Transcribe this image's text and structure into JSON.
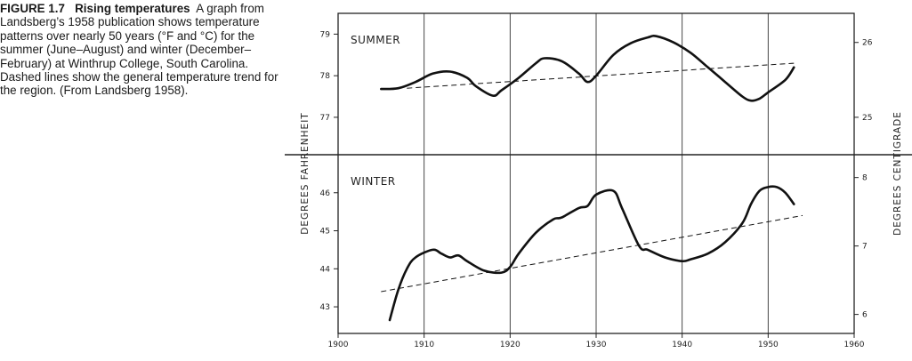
{
  "caption": {
    "figure_number": "FIGURE 1.7",
    "title": "Rising temperatures",
    "body": "A graph from Landsberg’s 1958 publication shows temperature patterns over nearly 50 years (°F and °C) for the summer (June–August) and winter (December–February) at Winthrup College, South Carolina. Dashed lines show the general temperature trend for the region. (From Landsberg 1958)."
  },
  "chart_data": {
    "type": "line",
    "xlim": [
      1900,
      1960
    ],
    "x_ticks": [
      1900,
      1910,
      1920,
      1930,
      1940,
      1950,
      1960
    ],
    "x_tick_labels": [
      "1900",
      "1910",
      "1920",
      "1930",
      "1940",
      "1950",
      "1960"
    ],
    "ylabel_left": "DEGREES FAHRENHEIT",
    "ylabel_right": "DEGREES CENTIGRADE",
    "grid": "vertical lines at each decade",
    "panels": [
      {
        "label": "SUMMER",
        "ylim_f": [
          76.1,
          79.5
        ],
        "y_ticks_f": [
          77,
          78,
          79
        ],
        "y_tick_labels_f": [
          "77",
          "78",
          "79"
        ],
        "y_ticks_c": [
          25,
          26
        ],
        "y_tick_labels_c": [
          "25",
          "26"
        ],
        "series": [
          {
            "style": "solid",
            "x": [
              1905,
              1907,
              1909,
              1911,
              1913,
              1915,
              1916,
              1918,
              1919,
              1921,
              1923,
              1924,
              1926,
              1928,
              1929,
              1930,
              1932,
              1934,
              1936,
              1937,
              1939,
              1941,
              1943,
              1945,
              1947,
              1948,
              1949,
              1950,
              1952,
              1953
            ],
            "y": [
              77.68,
              77.7,
              77.85,
              78.05,
              78.1,
              77.95,
              77.75,
              77.52,
              77.65,
              77.95,
              78.3,
              78.42,
              78.35,
              78.05,
              77.85,
              78.0,
              78.5,
              78.78,
              78.92,
              78.95,
              78.8,
              78.55,
              78.2,
              77.85,
              77.5,
              77.4,
              77.45,
              77.6,
              77.9,
              78.2
            ]
          },
          {
            "style": "dashed",
            "x": [
              1908,
              1953
            ],
            "y": [
              77.7,
              78.3
            ]
          }
        ]
      },
      {
        "label": "WINTER",
        "ylim_f": [
          42.3,
          47.0
        ],
        "y_ticks_f": [
          43,
          44,
          45,
          46
        ],
        "y_tick_labels_f": [
          "43",
          "44",
          "45",
          "46"
        ],
        "y_ticks_c": [
          6,
          7,
          8
        ],
        "y_tick_labels_c": [
          "6",
          "7",
          "8"
        ],
        "series": [
          {
            "style": "solid",
            "x": [
              1906,
              1907,
              1908,
              1909,
              1911,
              1912,
              1913,
              1914,
              1915,
              1917,
              1919,
              1920,
              1921,
              1923,
              1925,
              1926,
              1928,
              1929,
              1930,
              1932,
              1933,
              1935,
              1936,
              1938,
              1940,
              1941,
              1943,
              1945,
              1947,
              1948,
              1949,
              1950,
              1951,
              1952,
              1953
            ],
            "y": [
              42.65,
              43.45,
              44.0,
              44.3,
              44.5,
              44.4,
              44.3,
              44.35,
              44.2,
              43.95,
              43.9,
              44.05,
              44.4,
              44.95,
              45.3,
              45.35,
              45.6,
              45.65,
              45.95,
              46.05,
              45.6,
              44.6,
              44.5,
              44.3,
              44.2,
              44.25,
              44.4,
              44.7,
              45.2,
              45.7,
              46.05,
              46.15,
              46.15,
              46.0,
              45.7
            ]
          },
          {
            "style": "dashed",
            "x": [
              1905,
              1954
            ],
            "y": [
              43.4,
              45.4
            ]
          }
        ]
      }
    ]
  }
}
